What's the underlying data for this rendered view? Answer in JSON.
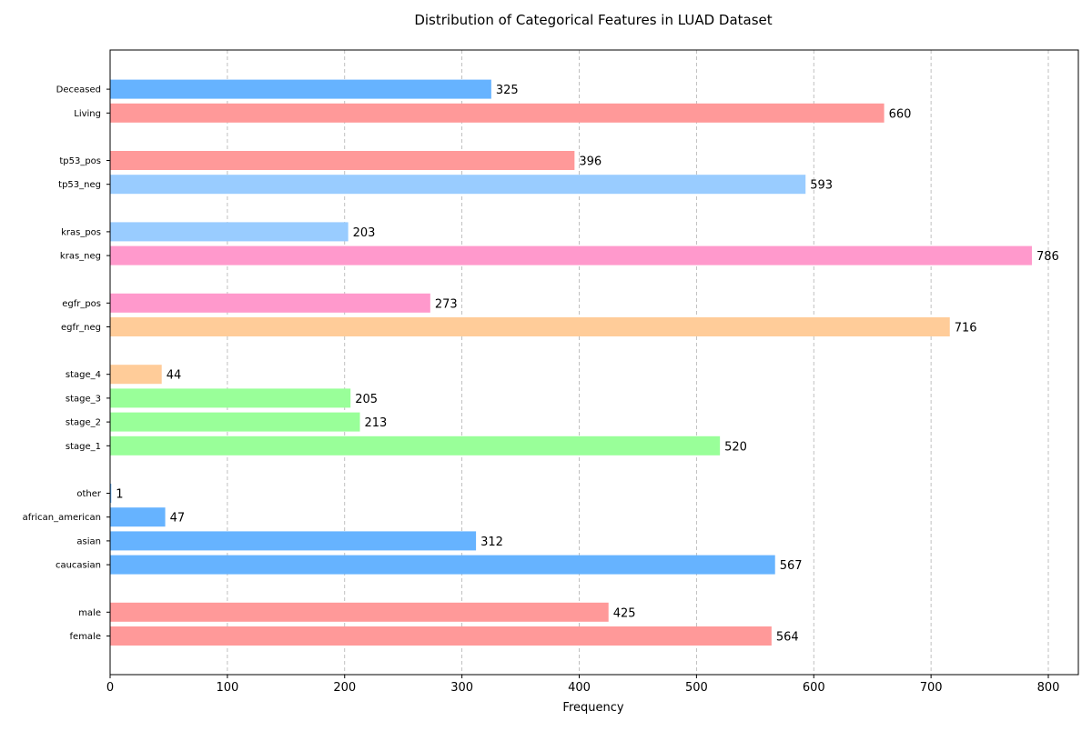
{
  "chart_data": {
    "type": "bar",
    "orientation": "horizontal",
    "title": "Distribution of Categorical Features in LUAD Dataset",
    "xlabel": "Frequency",
    "ylabel": "",
    "xlim": [
      0,
      825
    ],
    "xticks": [
      0,
      100,
      200,
      300,
      400,
      500,
      600,
      700,
      800
    ],
    "grid": "x-dashed",
    "bars": [
      {
        "label": "female",
        "value": 564,
        "color": "#ff9999"
      },
      {
        "label": "male",
        "value": 425,
        "color": "#ff9999"
      },
      {
        "label": "caucasian",
        "value": 567,
        "color": "#66b3ff"
      },
      {
        "label": "asian",
        "value": 312,
        "color": "#66b3ff"
      },
      {
        "label": "african_american",
        "value": 47,
        "color": "#66b3ff"
      },
      {
        "label": "other",
        "value": 1,
        "color": "#66b3ff"
      },
      {
        "label": "stage_1",
        "value": 520,
        "color": "#99ff99"
      },
      {
        "label": "stage_2",
        "value": 213,
        "color": "#99ff99"
      },
      {
        "label": "stage_3",
        "value": 205,
        "color": "#99ff99"
      },
      {
        "label": "stage_4",
        "value": 44,
        "color": "#ffcc99"
      },
      {
        "label": "egfr_neg",
        "value": 716,
        "color": "#ffcc99"
      },
      {
        "label": "egfr_pos",
        "value": 273,
        "color": "#ff99cc"
      },
      {
        "label": "kras_neg",
        "value": 786,
        "color": "#ff99cc"
      },
      {
        "label": "kras_pos",
        "value": 203,
        "color": "#99ccff"
      },
      {
        "label": "tp53_neg",
        "value": 593,
        "color": "#99ccff"
      },
      {
        "label": "tp53_pos",
        "value": 396,
        "color": "#ff9999"
      },
      {
        "label": "Living",
        "value": 660,
        "color": "#ff9999"
      },
      {
        "label": "Deceased",
        "value": 325,
        "color": "#66b3ff"
      }
    ]
  }
}
